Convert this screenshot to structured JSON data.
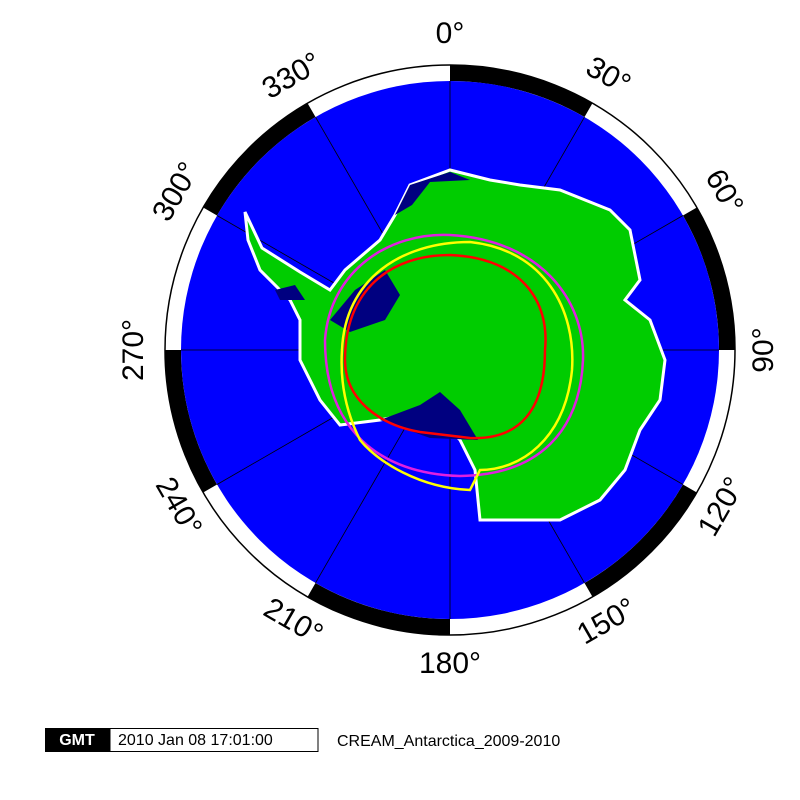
{
  "longitude_labels": [
    "0°",
    "30°",
    "60°",
    "90°",
    "120°",
    "150°",
    "180°",
    "210°",
    "240°",
    "270°",
    "300°",
    "330°"
  ],
  "logo": "GMT",
  "timestamp": "2010 Jan 08 17:01:00",
  "caption": "CREAM_Antarctica_2009-2010"
}
